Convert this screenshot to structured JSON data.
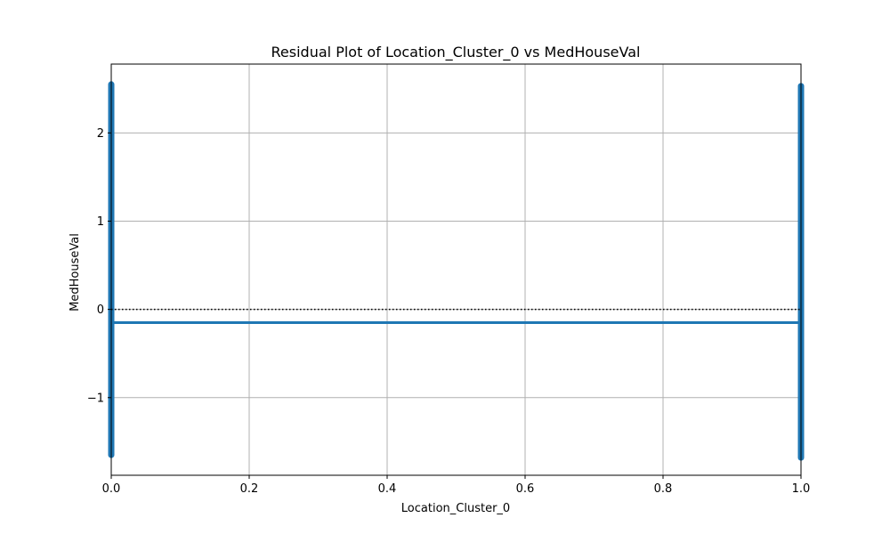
{
  "chart_data": {
    "type": "scatter",
    "title": "Residual Plot of Location_Cluster_0 vs MedHouseVal",
    "xlabel": "Location_Cluster_0",
    "ylabel": "MedHouseVal",
    "xlim": [
      0.0,
      1.0
    ],
    "ylim": [
      -1.88,
      2.78
    ],
    "x_ticks": [
      0.0,
      0.2,
      0.4,
      0.6,
      0.8,
      1.0
    ],
    "x_tick_labels": [
      "0.0",
      "0.2",
      "0.4",
      "0.6",
      "0.8",
      "1.0"
    ],
    "y_ticks": [
      -1,
      0,
      1,
      2
    ],
    "y_tick_labels": [
      "−1",
      "0",
      "1",
      "2"
    ],
    "grid": true,
    "series": [
      {
        "kind": "residual-points",
        "color": "#1f77b4",
        "groups": [
          {
            "x": 0,
            "y_min": -1.65,
            "y_max": 2.55
          },
          {
            "x": 1,
            "y_min": -1.68,
            "y_max": 2.53
          }
        ]
      },
      {
        "kind": "fit-line",
        "color": "#1f77b4",
        "x": [
          0,
          1
        ],
        "y": [
          -0.15,
          -0.15
        ]
      },
      {
        "kind": "reference-line",
        "style": "dotted",
        "color": "#000000",
        "y": 0
      }
    ]
  }
}
